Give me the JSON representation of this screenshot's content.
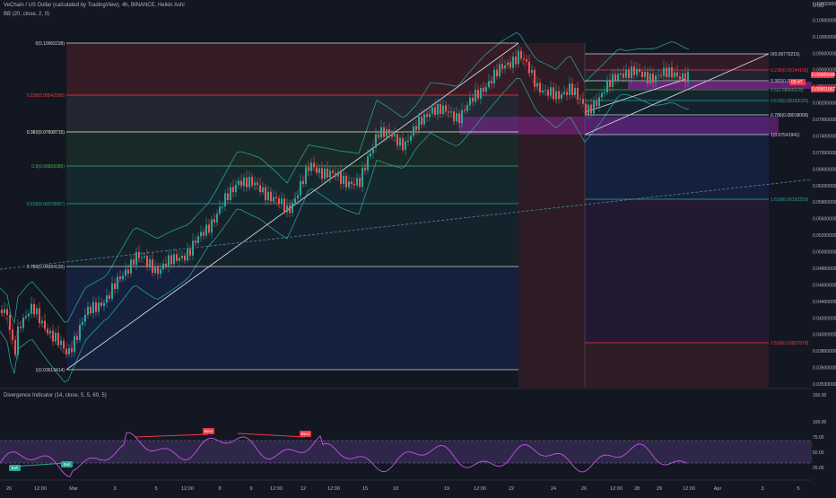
{
  "header": {
    "title": "VeChain / US Dollar (calculated by TradingView), 4h, BINANCE, Heikin Ashi",
    "indicator": "BB (20, close, 2, 0)",
    "currency": "USD"
  },
  "oscillator": {
    "title": "Divergence Indicator (14, close, 5, 5, 60, 5)",
    "ticks": [
      "150.00",
      "100.00",
      "75.00",
      "50.00",
      "25.00"
    ],
    "signals": [
      {
        "label": "Bull",
        "type": "bull"
      },
      {
        "label": "Bull",
        "type": "bull"
      },
      {
        "label": "Bear",
        "type": "bear"
      },
      {
        "label": "Bear",
        "type": "bear"
      }
    ]
  },
  "price_axis": {
    "ticks": [
      "0.11000000",
      "0.10500000",
      "0.10000000",
      "0.09500000",
      "0.09000000",
      "0.08600000",
      "0.08200000",
      "0.07800000",
      "0.07400000",
      "0.07000000",
      "0.06600000",
      "0.06200000",
      "0.05800000",
      "0.05600000",
      "0.05200000",
      "0.05000000",
      "0.04800000",
      "0.04600000",
      "0.04400000",
      "0.04200000",
      "0.04000000",
      "0.03800000",
      "0.03600000",
      "0.03530000"
    ],
    "badges": [
      {
        "text": "0.09005648",
        "color": "#f23645"
      },
      {
        "text": "09:47",
        "color": "#f23645"
      },
      {
        "text": "0.09001862",
        "color": "#f23645"
      }
    ]
  },
  "time_axis": {
    "ticks": [
      "26",
      "12:00",
      "Mar",
      "3",
      "5",
      "12:00",
      "8",
      "9",
      "12:00",
      "12",
      "12:00",
      "15",
      "18",
      "19",
      "12:00",
      "22",
      "24",
      "26",
      "12:00",
      "28",
      "29",
      "12:00",
      "Apr",
      "3",
      "5"
    ]
  },
  "fib_left": {
    "levels": [
      {
        "label": "0(0.10065238)",
        "color": "#d1d4dc"
      },
      {
        "label": "0.236(0.08542599)",
        "color": "#f23645"
      },
      {
        "label": "0.382(0.07608715)",
        "color": "#e9f2c4"
      },
      {
        "label": "0.5(0.06839386)",
        "color": "#4caf50"
      },
      {
        "label": "0.618(0.06078057)",
        "color": "#26a69a"
      },
      {
        "label": "0.786(0.04994130)",
        "color": "#d1d4dc"
      },
      {
        "label": "1(0.03613414)",
        "color": "#d1d4dc"
      }
    ]
  },
  "fib_right": {
    "levels": [
      {
        "label": "0(0.09770215)",
        "color": "#d1d4dc"
      },
      {
        "label": "0.236(0.09144106)",
        "color": "#f23645"
      },
      {
        "label": "0.382(0.08784)",
        "color": "#d1d4dc"
      },
      {
        "label": "0.5(0.08455078)",
        "color": "#4caf50"
      },
      {
        "label": "0.618(0.08182026)",
        "color": "#26a69a"
      },
      {
        "label": "0.786(0.08018006)",
        "color": "#d1d4dc"
      },
      {
        "label": "1(0.07541941)",
        "color": "#d1d4dc"
      },
      {
        "label": "1.618(0.06162250)",
        "color": "#26a69a"
      },
      {
        "label": "2.618(0.03827878)",
        "color": "#f23645"
      }
    ]
  },
  "colors": {
    "background": "#131722",
    "up": "#26a69a",
    "down": "#ef5350",
    "band": "#2a9d8f",
    "zone": "#9c27b0",
    "rsi": "#c653e6"
  },
  "chart_data": {
    "type": "line",
    "title": "VeChain / US Dollar (calculated by TradingView), 4h, BINANCE, Heikin Ashi",
    "xlabel": "",
    "ylabel": "",
    "x": [
      "Feb 26",
      "Mar 1",
      "Mar 3",
      "Mar 5",
      "Mar 8",
      "Mar 9",
      "Mar 12",
      "Mar 15",
      "Mar 18",
      "Mar 19",
      "Mar 22",
      "Mar 24",
      "Mar 26",
      "Mar 28",
      "Mar 29",
      "Apr 1"
    ],
    "series": [
      {
        "values": [
          0.0405,
          0.037,
          0.0445,
          0.049,
          0.0545,
          0.0605,
          0.063,
          0.068,
          0.078,
          0.082,
          0.099,
          0.085,
          0.081,
          0.0905,
          0.0895,
          0.09
        ]
      }
    ],
    "ylim": [
      0.0353,
      0.11
    ],
    "grid": false
  }
}
